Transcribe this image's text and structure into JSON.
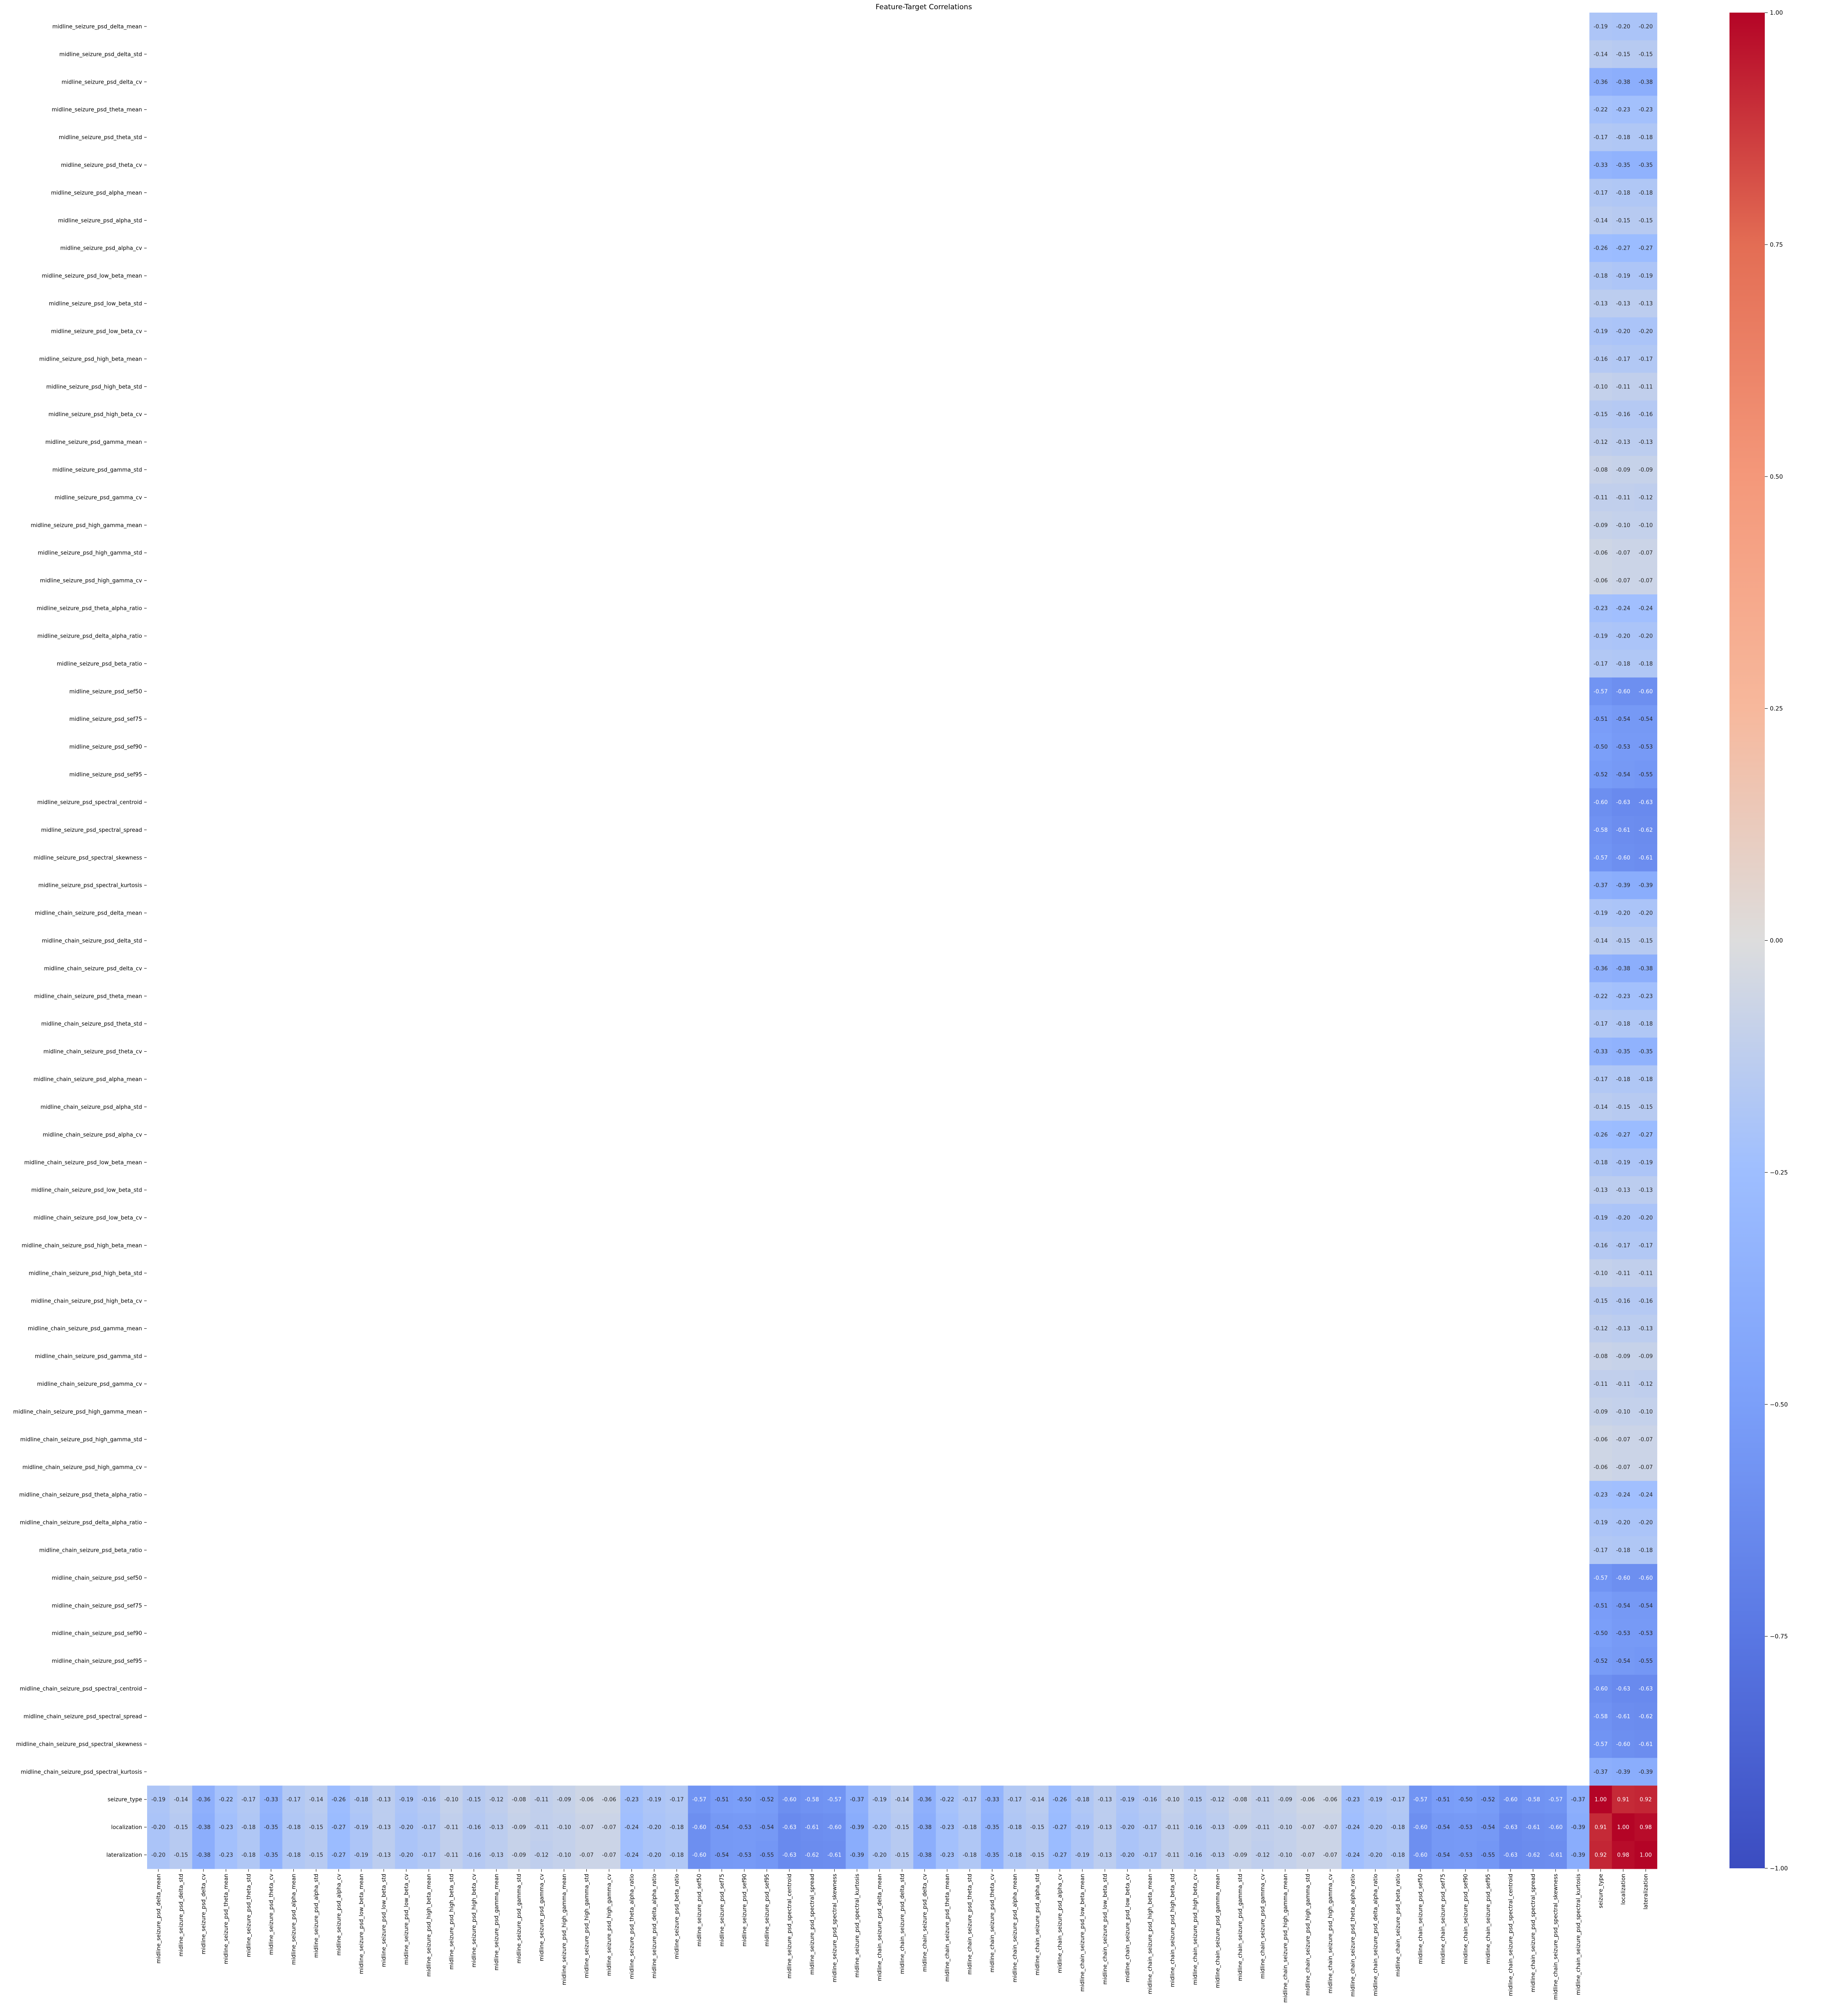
{
  "chart_data": {
    "type": "heatmap",
    "title": "Feature-Target Correlations",
    "xlabel": "",
    "ylabel": "",
    "feature_labels": [
      "midline_seizure_psd_delta_mean",
      "midline_seizure_psd_delta_std",
      "midline_seizure_psd_delta_cv",
      "midline_seizure_psd_theta_mean",
      "midline_seizure_psd_theta_std",
      "midline_seizure_psd_theta_cv",
      "midline_seizure_psd_alpha_mean",
      "midline_seizure_psd_alpha_std",
      "midline_seizure_psd_alpha_cv",
      "midline_seizure_psd_low_beta_mean",
      "midline_seizure_psd_low_beta_std",
      "midline_seizure_psd_low_beta_cv",
      "midline_seizure_psd_high_beta_mean",
      "midline_seizure_psd_high_beta_std",
      "midline_seizure_psd_high_beta_cv",
      "midline_seizure_psd_gamma_mean",
      "midline_seizure_psd_gamma_std",
      "midline_seizure_psd_gamma_cv",
      "midline_seizure_psd_high_gamma_mean",
      "midline_seizure_psd_high_gamma_std",
      "midline_seizure_psd_high_gamma_cv",
      "midline_seizure_psd_theta_alpha_ratio",
      "midline_seizure_psd_delta_alpha_ratio",
      "midline_seizure_psd_beta_ratio",
      "midline_seizure_psd_sef50",
      "midline_seizure_psd_sef75",
      "midline_seizure_psd_sef90",
      "midline_seizure_psd_sef95",
      "midline_seizure_psd_spectral_centroid",
      "midline_seizure_psd_spectral_spread",
      "midline_seizure_psd_spectral_skewness",
      "midline_seizure_psd_spectral_kurtosis",
      "midline_chain_seizure_psd_delta_mean",
      "midline_chain_seizure_psd_delta_std",
      "midline_chain_seizure_psd_delta_cv",
      "midline_chain_seizure_psd_theta_mean",
      "midline_chain_seizure_psd_theta_std",
      "midline_chain_seizure_psd_theta_cv",
      "midline_chain_seizure_psd_alpha_mean",
      "midline_chain_seizure_psd_alpha_std",
      "midline_chain_seizure_psd_alpha_cv",
      "midline_chain_seizure_psd_low_beta_mean",
      "midline_chain_seizure_psd_low_beta_std",
      "midline_chain_seizure_psd_low_beta_cv",
      "midline_chain_seizure_psd_high_beta_mean",
      "midline_chain_seizure_psd_high_beta_std",
      "midline_chain_seizure_psd_high_beta_cv",
      "midline_chain_seizure_psd_gamma_mean",
      "midline_chain_seizure_psd_gamma_std",
      "midline_chain_seizure_psd_gamma_cv",
      "midline_chain_seizure_psd_high_gamma_mean",
      "midline_chain_seizure_psd_high_gamma_std",
      "midline_chain_seizure_psd_high_gamma_cv",
      "midline_chain_seizure_psd_theta_alpha_ratio",
      "midline_chain_seizure_psd_delta_alpha_ratio",
      "midline_chain_seizure_psd_beta_ratio",
      "midline_chain_seizure_psd_sef50",
      "midline_chain_seizure_psd_sef75",
      "midline_chain_seizure_psd_sef90",
      "midline_chain_seizure_psd_sef95",
      "midline_chain_seizure_psd_spectral_centroid",
      "midline_chain_seizure_psd_spectral_spread",
      "midline_chain_seizure_psd_spectral_skewness",
      "midline_chain_seizure_psd_spectral_kurtosis"
    ],
    "target_labels": [
      "seizure_type",
      "localization",
      "lateralization"
    ],
    "feature_target_values": [
      [
        -0.19,
        -0.2,
        -0.2
      ],
      [
        -0.14,
        -0.15,
        -0.15
      ],
      [
        -0.36,
        -0.38,
        -0.38
      ],
      [
        -0.22,
        -0.23,
        -0.23
      ],
      [
        -0.17,
        -0.18,
        -0.18
      ],
      [
        -0.33,
        -0.35,
        -0.35
      ],
      [
        -0.17,
        -0.18,
        -0.18
      ],
      [
        -0.14,
        -0.15,
        -0.15
      ],
      [
        -0.26,
        -0.27,
        -0.27
      ],
      [
        -0.18,
        -0.19,
        -0.19
      ],
      [
        -0.13,
        -0.13,
        -0.13
      ],
      [
        -0.19,
        -0.2,
        -0.2
      ],
      [
        -0.16,
        -0.17,
        -0.17
      ],
      [
        -0.1,
        -0.11,
        -0.11
      ],
      [
        -0.15,
        -0.16,
        -0.16
      ],
      [
        -0.12,
        -0.13,
        -0.13
      ],
      [
        -0.08,
        -0.09,
        -0.09
      ],
      [
        -0.11,
        -0.11,
        -0.12
      ],
      [
        -0.09,
        -0.1,
        -0.1
      ],
      [
        -0.06,
        -0.07,
        -0.07
      ],
      [
        -0.06,
        -0.07,
        -0.07
      ],
      [
        -0.23,
        -0.24,
        -0.24
      ],
      [
        -0.19,
        -0.2,
        -0.2
      ],
      [
        -0.17,
        -0.18,
        -0.18
      ],
      [
        -0.57,
        -0.6,
        -0.6
      ],
      [
        -0.51,
        -0.54,
        -0.54
      ],
      [
        -0.5,
        -0.53,
        -0.53
      ],
      [
        -0.52,
        -0.54,
        -0.55
      ],
      [
        -0.6,
        -0.63,
        -0.63
      ],
      [
        -0.58,
        -0.61,
        -0.62
      ],
      [
        -0.57,
        -0.6,
        -0.61
      ],
      [
        -0.37,
        -0.39,
        -0.39
      ],
      [
        -0.19,
        -0.2,
        -0.2
      ],
      [
        -0.14,
        -0.15,
        -0.15
      ],
      [
        -0.36,
        -0.38,
        -0.38
      ],
      [
        -0.22,
        -0.23,
        -0.23
      ],
      [
        -0.17,
        -0.18,
        -0.18
      ],
      [
        -0.33,
        -0.35,
        -0.35
      ],
      [
        -0.17,
        -0.18,
        -0.18
      ],
      [
        -0.14,
        -0.15,
        -0.15
      ],
      [
        -0.26,
        -0.27,
        -0.27
      ],
      [
        -0.18,
        -0.19,
        -0.19
      ],
      [
        -0.13,
        -0.13,
        -0.13
      ],
      [
        -0.19,
        -0.2,
        -0.2
      ],
      [
        -0.16,
        -0.17,
        -0.17
      ],
      [
        -0.1,
        -0.11,
        -0.11
      ],
      [
        -0.15,
        -0.16,
        -0.16
      ],
      [
        -0.12,
        -0.13,
        -0.13
      ],
      [
        -0.08,
        -0.09,
        -0.09
      ],
      [
        -0.11,
        -0.11,
        -0.12
      ],
      [
        -0.09,
        -0.1,
        -0.1
      ],
      [
        -0.06,
        -0.07,
        -0.07
      ],
      [
        -0.06,
        -0.07,
        -0.07
      ],
      [
        -0.23,
        -0.24,
        -0.24
      ],
      [
        -0.19,
        -0.2,
        -0.2
      ],
      [
        -0.17,
        -0.18,
        -0.18
      ],
      [
        -0.57,
        -0.6,
        -0.6
      ],
      [
        -0.51,
        -0.54,
        -0.54
      ],
      [
        -0.5,
        -0.53,
        -0.53
      ],
      [
        -0.52,
        -0.54,
        -0.55
      ],
      [
        -0.6,
        -0.63,
        -0.63
      ],
      [
        -0.58,
        -0.61,
        -0.62
      ],
      [
        -0.57,
        -0.6,
        -0.61
      ],
      [
        -0.37,
        -0.39,
        -0.39
      ]
    ],
    "target_target_values": [
      [
        1.0,
        0.91,
        0.92
      ],
      [
        0.91,
        1.0,
        0.98
      ],
      [
        0.92,
        0.98,
        1.0
      ]
    ],
    "value_format": "2 decimals",
    "colormap": "coolwarm",
    "colormap_stops": [
      "#3b4cc0",
      "#dddddd",
      "#b40426"
    ],
    "vmin": -1.0,
    "vmax": 1.0,
    "colorbar_ticks": [
      "1.00",
      "0.75",
      "0.50",
      "0.25",
      "0.00",
      "−0.25",
      "−0.50",
      "−0.75",
      "−1.00"
    ],
    "colorbar_tick_values": [
      1.0,
      0.75,
      0.5,
      0.25,
      0.0,
      -0.25,
      -0.5,
      -0.75,
      -1.0
    ],
    "grid": false,
    "legend": "colorbar-right"
  }
}
